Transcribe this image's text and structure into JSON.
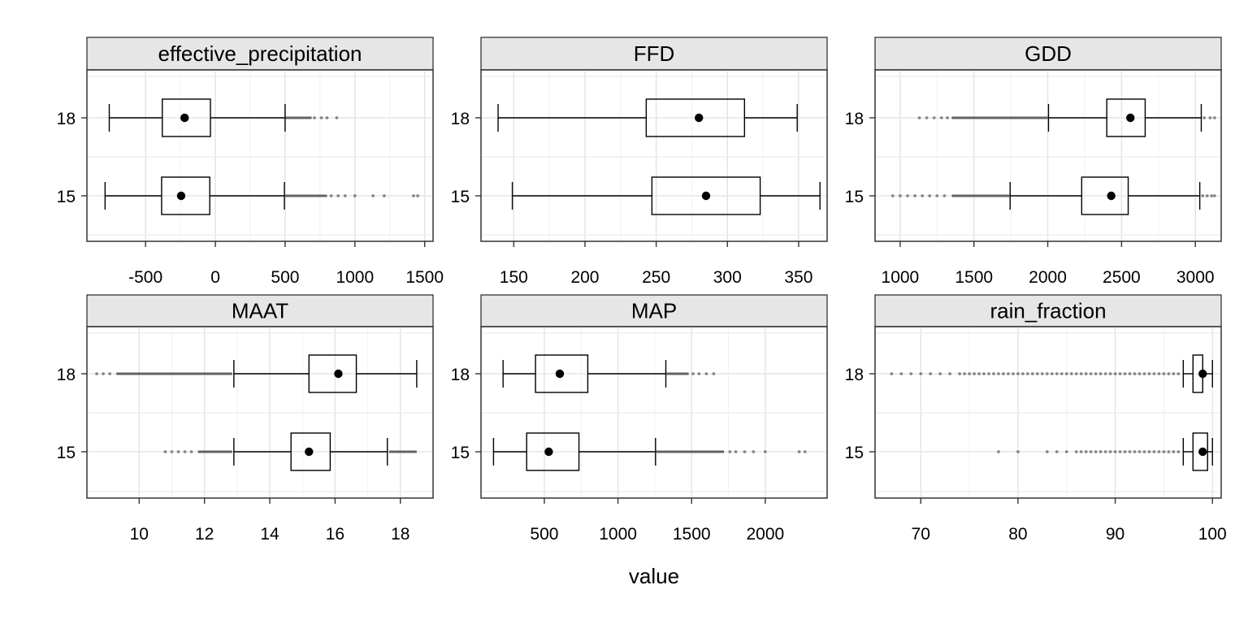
{
  "chart_data": {
    "type": "boxplot",
    "orientation": "horizontal",
    "layout": "faceted-2x3",
    "grid": true,
    "xlabel": "value",
    "ylabel": "",
    "categories": [
      "15",
      "18"
    ],
    "panels": [
      {
        "title": "effective_precipitation",
        "xlim": [
          -920,
          1560
        ],
        "xticks": [
          -500,
          0,
          500,
          1000,
          1500
        ],
        "xtick_labels": [
          "-500",
          "0",
          "500",
          "1000",
          "1500"
        ],
        "boxes": [
          {
            "category": "15",
            "whisker_low": -790,
            "q1": -385,
            "median": -245,
            "q3": -40,
            "whisker_high": 495,
            "outliers_dense": [
              500,
              800
            ],
            "outliers_sparse": [
              830,
              880,
              930,
              1000,
              1130,
              1210,
              1420,
              1450
            ]
          },
          {
            "category": "18",
            "whisker_low": -760,
            "q1": -380,
            "median": -220,
            "q3": -35,
            "whisker_high": 500,
            "outliers_dense": [
              505,
              690
            ],
            "outliers_sparse": [
              710,
              760,
              800,
              870
            ]
          }
        ]
      },
      {
        "title": "FFD",
        "xlim": [
          127,
          370
        ],
        "xticks": [
          150,
          200,
          250,
          300,
          350
        ],
        "xtick_labels": [
          "150",
          "200",
          "250",
          "300",
          "350"
        ],
        "boxes": [
          {
            "category": "15",
            "whisker_low": 149,
            "q1": 247,
            "median": 285,
            "q3": 323,
            "whisker_high": 365,
            "outliers_dense": [],
            "outliers_sparse": []
          },
          {
            "category": "18",
            "whisker_low": 139,
            "q1": 243,
            "median": 280,
            "q3": 312,
            "whisker_high": 349,
            "outliers_dense": [],
            "outliers_sparse": []
          }
        ]
      },
      {
        "title": "GDD",
        "xlim": [
          830,
          3175
        ],
        "xticks": [
          1000,
          1500,
          2000,
          2500,
          3000
        ],
        "xtick_labels": [
          "1000",
          "1500",
          "2000",
          "2500",
          "3000"
        ],
        "boxes": [
          {
            "category": "15",
            "whisker_low": 1745,
            "q1": 2230,
            "median": 2430,
            "q3": 2545,
            "whisker_high": 3030,
            "outliers_dense": [
              1350,
              1740
            ],
            "outliers_sparse": [
              950,
              1000,
              1050,
              1100,
              1150,
              1200,
              1250,
              1300,
              3050,
              3080,
              3110,
              3130
            ]
          },
          {
            "category": "18",
            "whisker_low": 2005,
            "q1": 2400,
            "median": 2560,
            "q3": 2660,
            "whisker_high": 3040,
            "outliers_dense": [
              1350,
              2000
            ],
            "outliers_sparse": [
              1130,
              1180,
              1230,
              1280,
              1320,
              3060,
              3100,
              3130
            ]
          }
        ]
      },
      {
        "title": "MAAT",
        "xlim": [
          8.4,
          19.0
        ],
        "xticks": [
          10,
          12,
          14,
          16,
          18
        ],
        "xtick_labels": [
          "10",
          "12",
          "14",
          "16",
          "18"
        ],
        "boxes": [
          {
            "category": "15",
            "whisker_low": 12.9,
            "q1": 14.65,
            "median": 15.2,
            "q3": 15.85,
            "whisker_high": 17.6,
            "outliers_dense": [
              11.8,
              12.85,
              17.65,
              18.5
            ],
            "outliers_sparse": [
              10.8,
              11.0,
              11.2,
              11.4,
              11.6
            ]
          },
          {
            "category": "18",
            "whisker_low": 12.9,
            "q1": 15.2,
            "median": 16.1,
            "q3": 16.65,
            "whisker_high": 18.5,
            "outliers_dense": [
              9.3,
              12.85
            ],
            "outliers_sparse": [
              8.7,
              8.9,
              9.1
            ]
          }
        ]
      },
      {
        "title": "MAP",
        "xlim": [
          70,
          2420
        ],
        "xticks": [
          500,
          1000,
          1500,
          2000
        ],
        "xtick_labels": [
          "500",
          "1000",
          "1500",
          "2000"
        ],
        "boxes": [
          {
            "category": "15",
            "whisker_low": 155,
            "q1": 380,
            "median": 530,
            "q3": 735,
            "whisker_high": 1255,
            "outliers_dense": [
              1260,
              1720
            ],
            "outliers_sparse": [
              1760,
              1800,
              1860,
              1920,
              2000,
              2230,
              2270
            ]
          },
          {
            "category": "18",
            "whisker_low": 220,
            "q1": 440,
            "median": 605,
            "q3": 795,
            "whisker_high": 1325,
            "outliers_dense": [
              1330,
              1480
            ],
            "outliers_sparse": [
              1510,
              1550,
              1600,
              1650
            ]
          }
        ]
      },
      {
        "title": "rain_fraction",
        "xlim": [
          65.3,
          100.9
        ],
        "xticks": [
          70,
          80,
          90,
          100
        ],
        "xtick_labels": [
          "70",
          "80",
          "90",
          "100"
        ],
        "boxes": [
          {
            "category": "15",
            "whisker_low": 97.0,
            "q1": 98.0,
            "median": 99.0,
            "q3": 99.5,
            "whisker_high": 100.0,
            "outliers_dense": [],
            "outliers_sparse": [
              78,
              80,
              83,
              84,
              85,
              86,
              86.5,
              87,
              87.5,
              88,
              88.5,
              89,
              89.5,
              90,
              90.5,
              91,
              91.5,
              92,
              92.5,
              93,
              93.5,
              94,
              94.5,
              95,
              95.5,
              96,
              96.5
            ]
          },
          {
            "category": "18",
            "whisker_low": 97.0,
            "q1": 98.0,
            "median": 99.0,
            "q3": 99.0,
            "whisker_high": 100.0,
            "outliers_dense": [],
            "outliers_sparse": [
              67,
              68,
              69,
              70,
              71,
              72,
              73,
              74,
              74.5,
              75,
              75.5,
              76,
              76.5,
              77,
              77.5,
              78,
              78.5,
              79,
              79.5,
              80,
              80.5,
              81,
              81.5,
              82,
              82.5,
              83,
              83.5,
              84,
              84.5,
              85,
              85.5,
              86,
              86.5,
              87,
              87.5,
              88,
              88.5,
              89,
              89.5,
              90,
              90.5,
              91,
              91.5,
              92,
              92.5,
              93,
              93.5,
              94,
              94.5,
              95,
              95.5,
              96,
              96.5
            ]
          }
        ]
      }
    ]
  },
  "colors": {
    "strip_fill": "#e6e6e6",
    "grid": "#e5e5e5",
    "frame": "#333333",
    "box": "#000000",
    "outlier": "#333333"
  }
}
